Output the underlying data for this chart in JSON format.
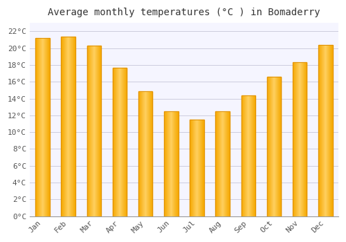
{
  "title": "Average monthly temperatures (°C ) in Bomaderry",
  "months": [
    "Jan",
    "Feb",
    "Mar",
    "Apr",
    "May",
    "Jun",
    "Jul",
    "Aug",
    "Sep",
    "Oct",
    "Nov",
    "Dec"
  ],
  "values": [
    21.2,
    21.4,
    20.3,
    17.7,
    14.9,
    12.5,
    11.5,
    12.5,
    14.4,
    16.6,
    18.3,
    20.4
  ],
  "bar_color_center": "#FFD060",
  "bar_color_edge": "#F5A800",
  "ylim": [
    0,
    23
  ],
  "yticks": [
    0,
    2,
    4,
    6,
    8,
    10,
    12,
    14,
    16,
    18,
    20,
    22
  ],
  "background_color": "#FFFFFF",
  "plot_bg_color": "#F5F5FF",
  "grid_color": "#CCCCDD",
  "title_fontsize": 10,
  "tick_fontsize": 8,
  "bar_width": 0.55
}
